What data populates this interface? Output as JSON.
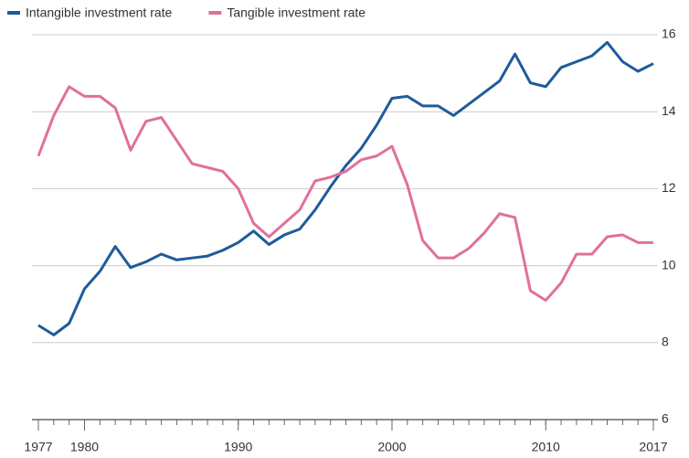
{
  "chart_data": {
    "type": "line",
    "x": [
      1977,
      1978,
      1979,
      1980,
      1981,
      1982,
      1983,
      1984,
      1985,
      1986,
      1987,
      1988,
      1989,
      1990,
      1991,
      1992,
      1993,
      1994,
      1995,
      1996,
      1997,
      1998,
      1999,
      2000,
      2001,
      2002,
      2003,
      2004,
      2005,
      2006,
      2007,
      2008,
      2009,
      2010,
      2011,
      2012,
      2013,
      2014,
      2015,
      2016,
      2017
    ],
    "series": [
      {
        "name": "Intangible investment rate",
        "color": "#1f5b9a",
        "values": [
          8.45,
          8.2,
          8.5,
          9.4,
          9.85,
          10.5,
          9.95,
          10.1,
          10.3,
          10.15,
          10.2,
          10.25,
          10.4,
          10.6,
          10.9,
          10.55,
          10.8,
          10.95,
          11.45,
          12.05,
          12.6,
          13.05,
          13.65,
          14.35,
          14.4,
          14.15,
          14.15,
          13.9,
          14.2,
          14.5,
          14.8,
          15.5,
          14.75,
          14.65,
          15.15,
          15.3,
          15.45,
          15.8,
          15.3,
          15.05,
          15.25
        ]
      },
      {
        "name": "Tangible investment rate",
        "color": "#e0709a",
        "values": [
          12.85,
          13.9,
          14.65,
          14.4,
          14.4,
          14.1,
          13.0,
          13.75,
          13.85,
          13.25,
          12.65,
          12.55,
          12.45,
          12.0,
          11.1,
          10.75,
          11.1,
          11.45,
          12.2,
          12.3,
          12.45,
          12.75,
          12.85,
          13.1,
          12.1,
          10.65,
          10.2,
          10.2,
          10.45,
          10.85,
          11.35,
          11.25,
          9.35,
          9.1,
          9.55,
          10.3,
          10.3,
          10.75,
          10.8,
          10.6,
          10.6
        ]
      }
    ],
    "xlim": [
      1977,
      2017
    ],
    "xticks": [
      1977,
      1980,
      1990,
      2000,
      2010,
      2017
    ],
    "ylim": [
      6,
      16
    ],
    "yticks": [
      6,
      8,
      10,
      12,
      14,
      16
    ],
    "grid": true,
    "legend": "top-left"
  }
}
